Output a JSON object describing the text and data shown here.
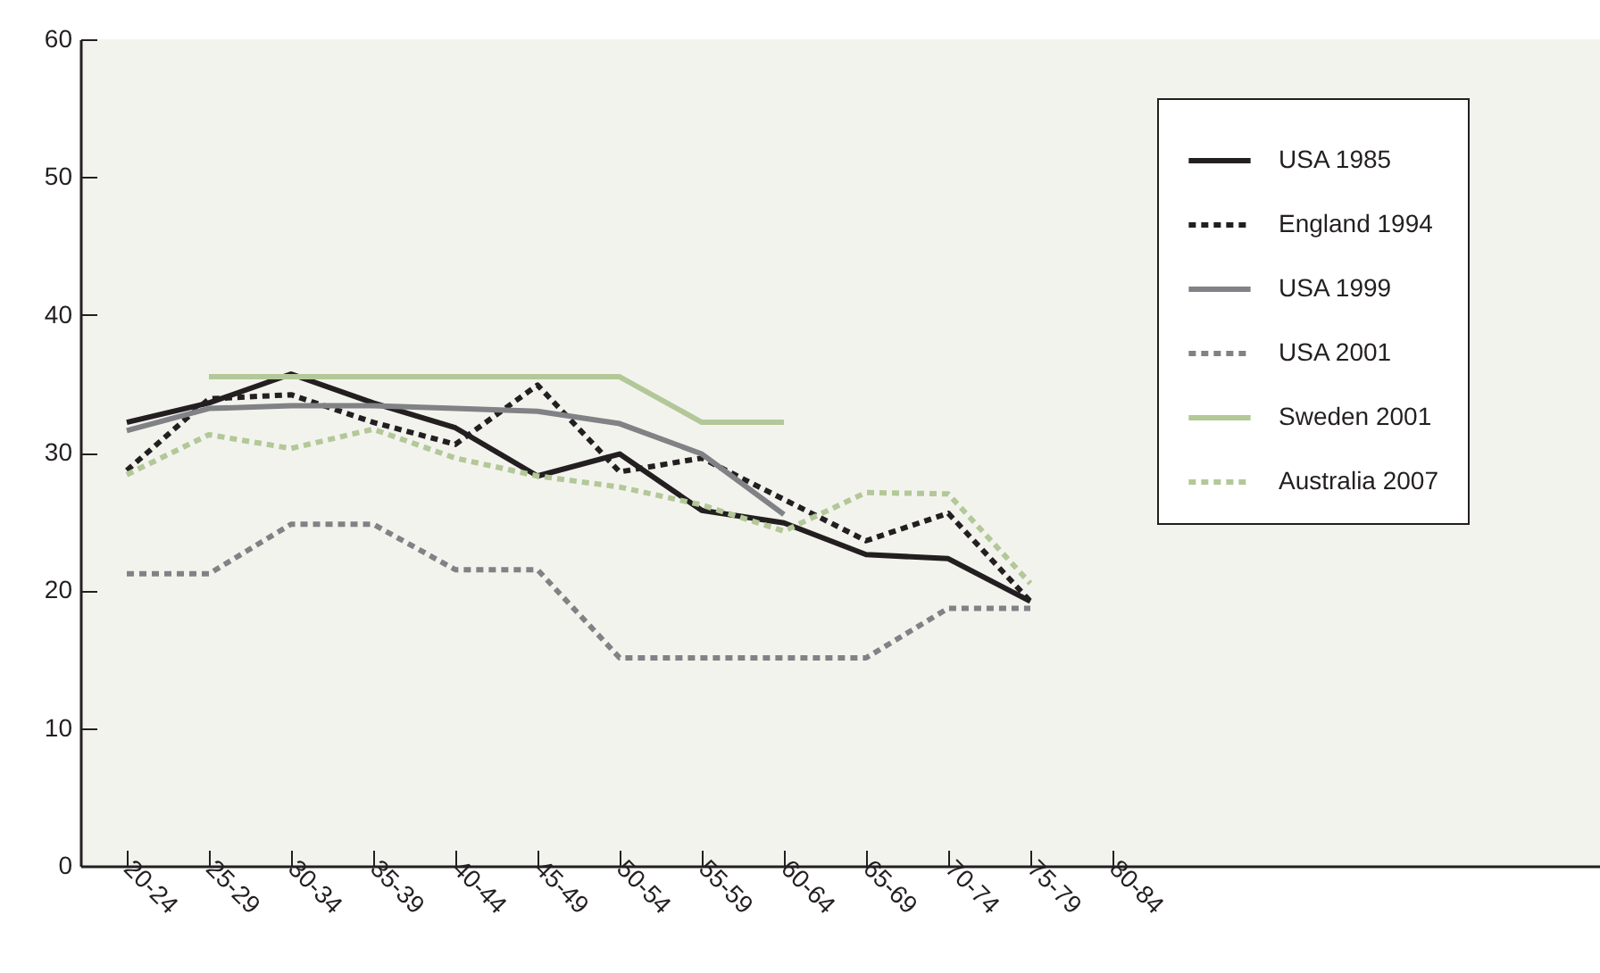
{
  "chart_data": {
    "type": "line",
    "categories": [
      "20-24",
      "25-29",
      "30-34",
      "35-39",
      "40-44",
      "45-49",
      "50-54",
      "55-59",
      "60-64",
      "65-69",
      "70-74",
      "75-79",
      "80-84"
    ],
    "series": [
      {
        "name": "USA 1985",
        "color": "#231f20",
        "line_style": "solid",
        "values": [
          32.2,
          33.6,
          35.7,
          33.6,
          31.8,
          28.3,
          29.9,
          25.8,
          24.9,
          22.6,
          22.3,
          19.2,
          null
        ]
      },
      {
        "name": "England 1994",
        "color": "#231f20",
        "line_style": "dotted",
        "values": [
          28.7,
          33.9,
          34.2,
          32.2,
          30.6,
          34.9,
          28.6,
          29.6,
          26.6,
          23.6,
          25.6,
          19.2,
          null
        ]
      },
      {
        "name": "USA 1999",
        "color": "#808285",
        "line_style": "solid",
        "values": [
          31.6,
          33.2,
          33.4,
          33.4,
          33.2,
          33.0,
          32.1,
          29.9,
          25.5,
          null,
          null,
          null,
          null
        ]
      },
      {
        "name": "USA 2001",
        "color": "#808285",
        "line_style": "dotted",
        "values": [
          21.2,
          21.2,
          24.8,
          24.8,
          21.5,
          21.5,
          15.1,
          15.1,
          15.1,
          15.1,
          18.7,
          18.7,
          null
        ]
      },
      {
        "name": "Sweden 2001",
        "color": "#b3c898",
        "line_style": "solid",
        "values": [
          null,
          35.5,
          35.5,
          35.5,
          35.5,
          35.5,
          35.5,
          32.2,
          32.2,
          null,
          null,
          null,
          null
        ]
      },
      {
        "name": "Australia 2007",
        "color": "#b3c898",
        "line_style": "dotted",
        "values": [
          28.4,
          31.3,
          30.3,
          31.7,
          29.6,
          28.3,
          27.5,
          26.2,
          24.3,
          27.1,
          27.0,
          20.5,
          null
        ]
      }
    ],
    "ylim": [
      0,
      60
    ],
    "yticks": [
      0,
      10,
      20,
      30,
      40,
      50,
      60
    ],
    "legend": "top right",
    "marker": "none"
  }
}
